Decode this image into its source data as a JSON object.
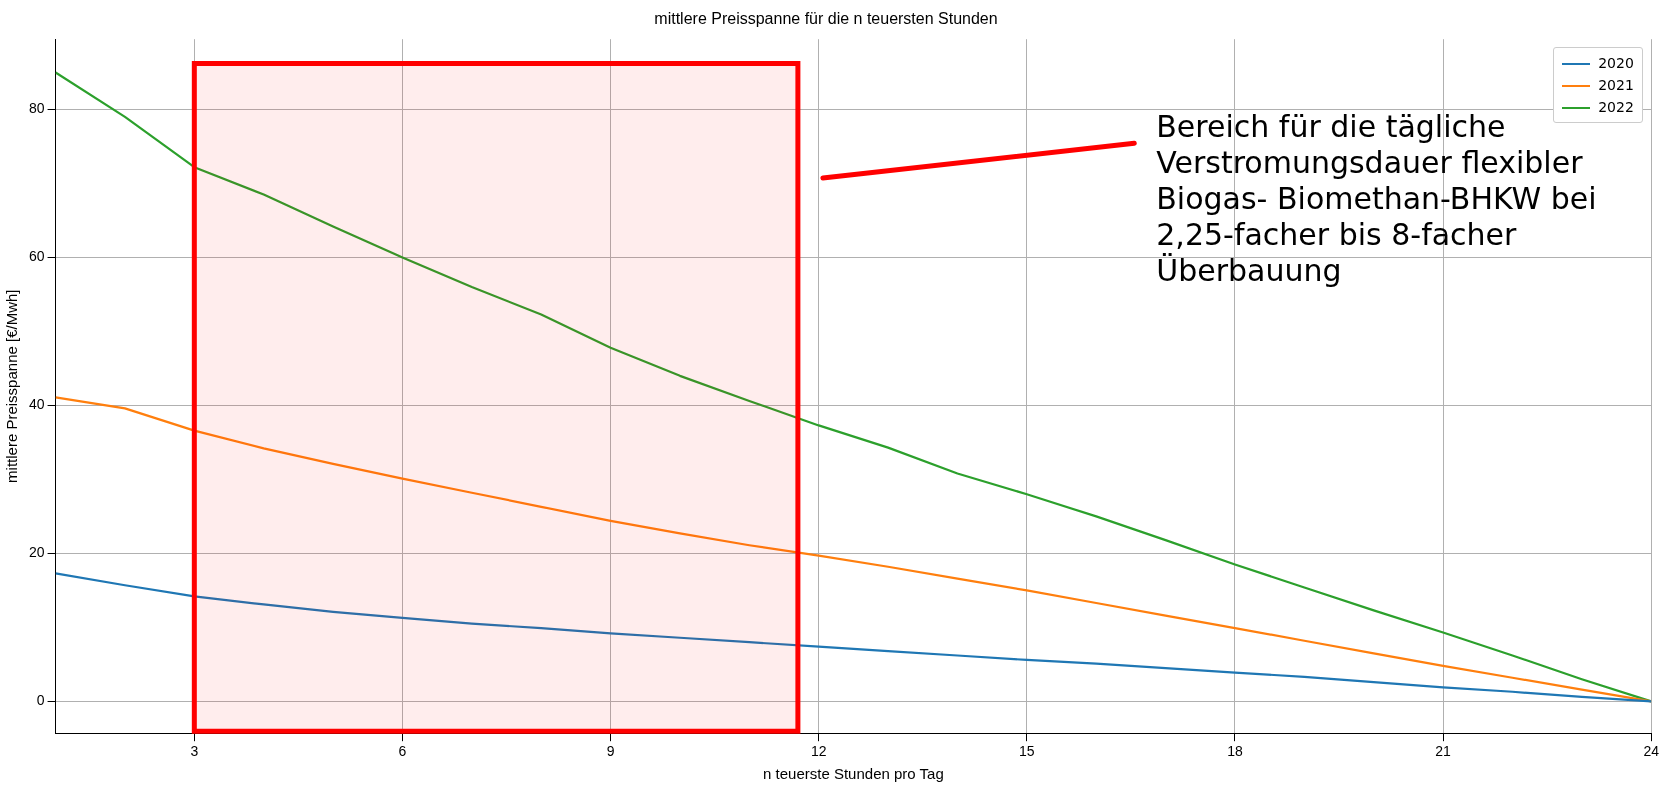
{
  "chart_data": {
    "type": "line",
    "title": "mittlere Preisspanne für die n teuersten Stunden",
    "xlabel": "n teuerste Stunden pro Tag",
    "ylabel": "mittlere Preisspanne [€/Mwh]",
    "x": [
      1,
      2,
      3,
      4,
      5,
      6,
      7,
      8,
      9,
      10,
      11,
      12,
      13,
      14,
      15,
      16,
      17,
      18,
      19,
      20,
      21,
      22,
      23,
      24
    ],
    "series": [
      {
        "name": "2020",
        "color": "#1f77b4",
        "values": [
          17.3,
          15.7,
          14.2,
          13.1,
          12.1,
          11.3,
          10.5,
          9.9,
          9.2,
          8.6,
          8,
          7.4,
          6.8,
          6.2,
          5.6,
          5.1,
          4.5,
          3.9,
          3.3,
          2.6,
          1.9,
          1.3,
          0.6,
          0
        ]
      },
      {
        "name": "2021",
        "color": "#ff7f0e",
        "values": [
          41.1,
          39.6,
          36.6,
          34.2,
          32.1,
          30.1,
          28.2,
          26.3,
          24.4,
          22.7,
          21.1,
          19.7,
          18.2,
          16.6,
          15,
          13.3,
          11.6,
          9.9,
          8.2,
          6.5,
          4.8,
          3.2,
          1.6,
          0
        ]
      },
      {
        "name": "2022",
        "color": "#2ca02c",
        "values": [
          85,
          79,
          72.2,
          68.5,
          64.2,
          60,
          56,
          52.3,
          47.8,
          44,
          40.6,
          37.3,
          34.3,
          30.8,
          28,
          25,
          21.8,
          18.5,
          15.4,
          12.3,
          9.3,
          6.2,
          3,
          0
        ]
      }
    ],
    "xlim": [
      1,
      24
    ],
    "xticks": [
      3,
      6,
      9,
      12,
      15,
      18,
      21,
      24
    ],
    "ylim": [
      -4.3,
      89.5
    ],
    "yticks": [
      0,
      20,
      40,
      60,
      80
    ],
    "bands": [
      {
        "axis": "x",
        "from": 3,
        "to": 11.7,
        "color": "#ff0000"
      }
    ],
    "annotations": [
      "Bereich für die tägliche Verstromungsdauer flexibler Biogas- Biomethan-BHKW bei 2,25-facher bis 8-facher Überbauung"
    ],
    "grid": true,
    "legend": "top right",
    "marker": "none",
    "line_style": "solid"
  }
}
